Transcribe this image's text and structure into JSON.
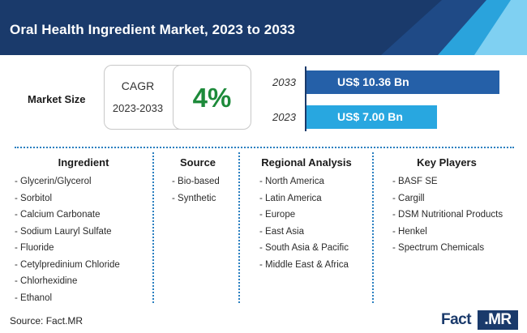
{
  "header": {
    "title": "Oral Health Ingredient Market, 2023 to 2033"
  },
  "market_size": {
    "label": "Market Size",
    "cagr_heading": "CAGR",
    "cagr_period": "2023-2033",
    "cagr_value": "4%"
  },
  "chart_data": {
    "type": "bar",
    "orientation": "horizontal",
    "categories": [
      "2033",
      "2023"
    ],
    "values": [
      10.36,
      7.0
    ],
    "value_labels": [
      "US$ 10.36 Bn",
      "US$ 7.00 Bn"
    ],
    "colors": [
      "#2560a8",
      "#28a7e0"
    ],
    "grid": false
  },
  "columns": [
    {
      "title": "Ingredient",
      "items": [
        "- Glycerin/Glycerol",
        "- Sorbitol",
        "- Calcium Carbonate",
        "- Sodium Lauryl Sulfate",
        "- Fluoride",
        "- Cetylpredinium Chloride",
        "- Chlorhexidine",
        "- Ethanol"
      ]
    },
    {
      "title": "Source",
      "items": [
        "- Bio-based",
        "- Synthetic"
      ]
    },
    {
      "title": "Regional Analysis",
      "items": [
        "- North America",
        "- Latin America",
        "- Europe",
        "- East Asia",
        "- South Asia & Pacific",
        "- Middle East & Africa"
      ]
    },
    {
      "title": "Key Players",
      "items": [
        "- BASF SE",
        "- Cargill",
        "- DSM Nutritional Products",
        "- Henkel",
        "- Spectrum Chemicals"
      ]
    }
  ],
  "footer": {
    "source": "Source: Fact.MR",
    "logo_part1": "Fact",
    "logo_part2": ".MR"
  },
  "colors": {
    "header": "#1a3a6b",
    "accent_light": "#2aa3dc",
    "cagr_green": "#1d8a3a",
    "divider": "#2a7fc0"
  }
}
